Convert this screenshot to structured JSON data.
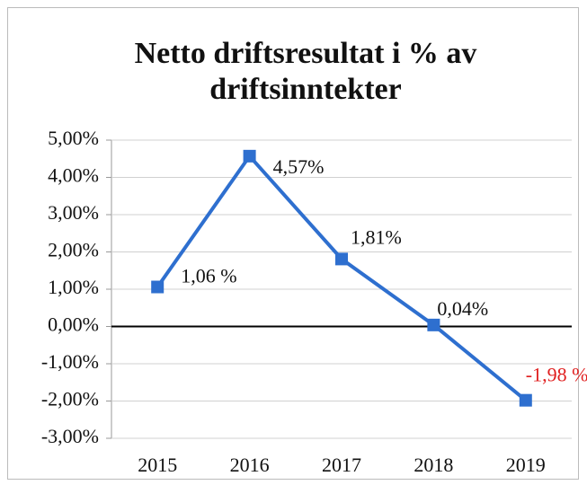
{
  "chart_data": {
    "type": "line",
    "title": "Netto driftsresultat i % av driftsinntekter",
    "categories": [
      "2015",
      "2016",
      "2017",
      "2018",
      "2019"
    ],
    "series": [
      {
        "name": null,
        "color": "#2e6fcf",
        "values": [
          1.06,
          4.57,
          1.81,
          0.04,
          -1.98
        ],
        "value_labels": [
          "1,06 %",
          "4,57%",
          "1,81%",
          "0,04%",
          "-1,98 %"
        ],
        "value_label_colors": [
          "#111111",
          "#111111",
          "#111111",
          "#111111",
          "#e02020"
        ]
      }
    ],
    "ylim": [
      -3,
      5
    ],
    "yticks": [
      {
        "value": -3,
        "label": "-3,00%"
      },
      {
        "value": -2,
        "label": "-2,00%"
      },
      {
        "value": -1,
        "label": "-1,00%"
      },
      {
        "value": 0,
        "label": "0,00%"
      },
      {
        "value": 1,
        "label": "1,00%"
      },
      {
        "value": 2,
        "label": "2,00%"
      },
      {
        "value": 3,
        "label": "3,00%"
      },
      {
        "value": 4,
        "label": "4,00%"
      },
      {
        "value": 5,
        "label": "5,00%"
      }
    ],
    "grid": true,
    "zero_line_color": "#000000"
  }
}
